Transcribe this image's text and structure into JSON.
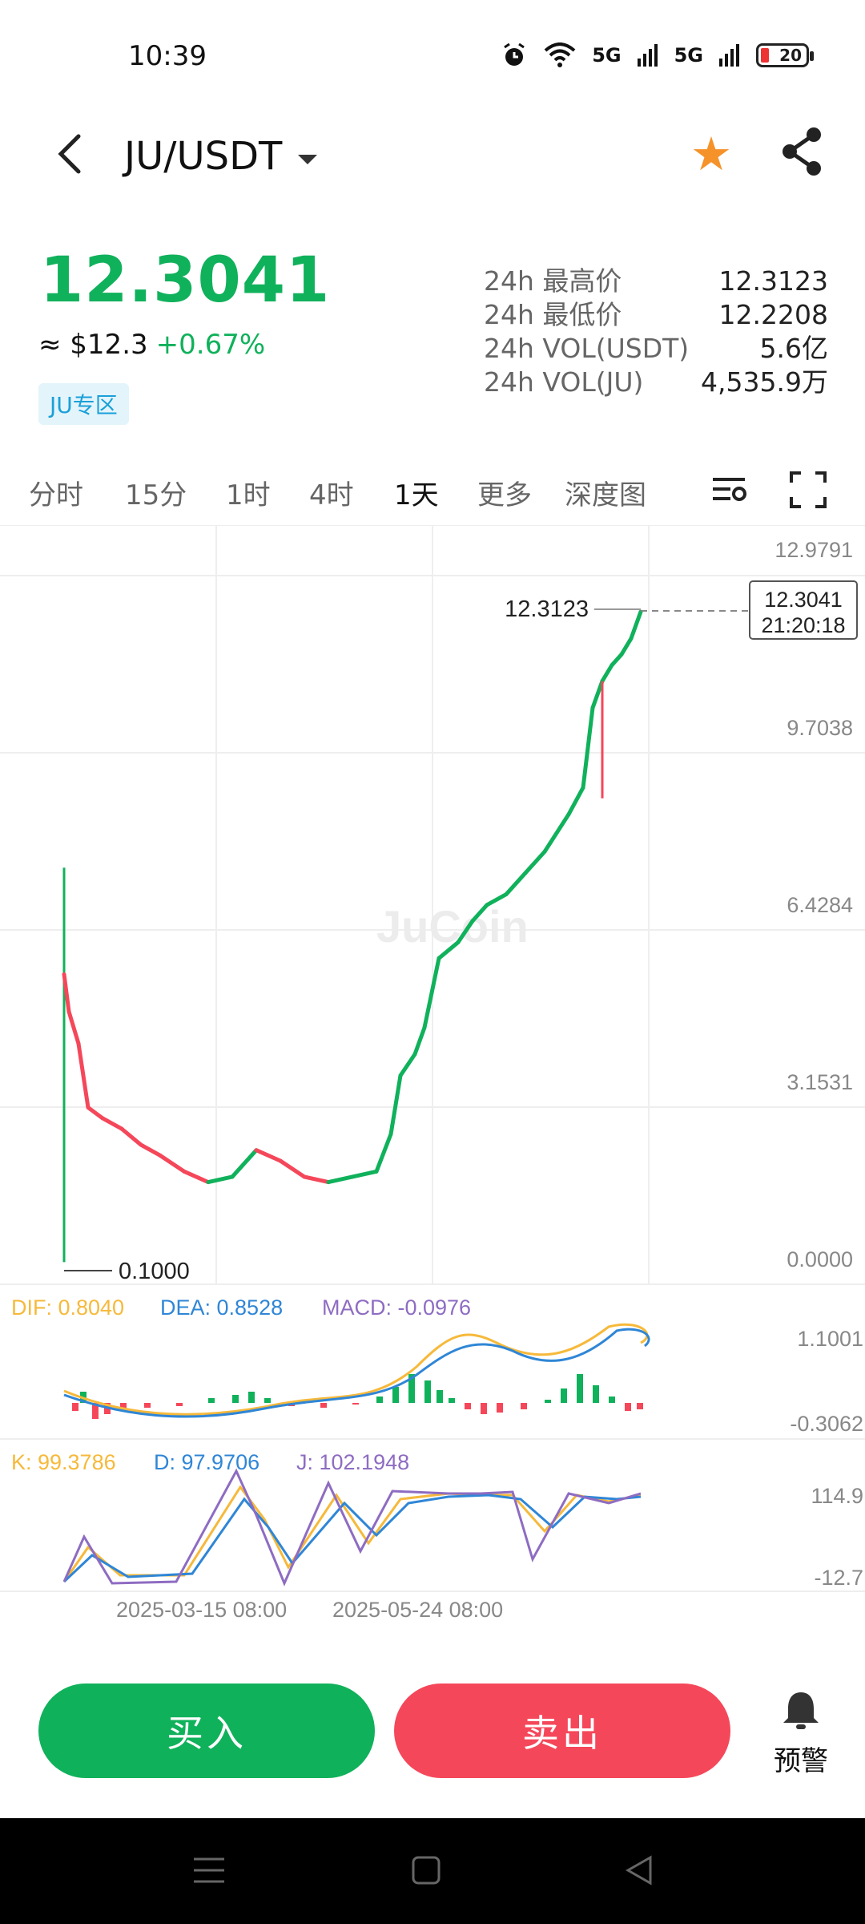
{
  "status_bar": {
    "time": "10:39",
    "battery": "20",
    "signal1": "5G",
    "signal2": "5G"
  },
  "header": {
    "pair": "JU/USDT"
  },
  "ticker": {
    "last_price": "12.3041",
    "approx_usd": "≈ $12.3",
    "change_pct": "+0.67%",
    "zone_tag": "JU专区",
    "stats": [
      {
        "label": "24h 最高价",
        "value": "12.3123"
      },
      {
        "label": "24h 最低价",
        "value": "12.2208"
      },
      {
        "label": "24h VOL(USDT)",
        "value": "5.6亿"
      },
      {
        "label": "24h VOL(JU)",
        "value": "4,535.9万"
      }
    ]
  },
  "tabs": [
    {
      "label": "分时",
      "active": false
    },
    {
      "label": "15分",
      "active": false
    },
    {
      "label": "1时",
      "active": false
    },
    {
      "label": "4时",
      "active": false
    },
    {
      "label": "1天",
      "active": true
    },
    {
      "label": "更多",
      "active": false
    },
    {
      "label": "深度图",
      "active": false
    }
  ],
  "chart_data": {
    "type": "line",
    "price_axis": [
      "12.9791",
      "9.7038",
      "6.4284",
      "3.1531",
      "0.0000"
    ],
    "ylim": [
      0,
      12.9791
    ],
    "high_label": "12.3123",
    "low_label": "0.1000",
    "current_price_box": {
      "price": "12.3041",
      "countdown": "21:20:18"
    },
    "watermark": "JuCoin",
    "x_labels": [
      "2025-03-15 08:00",
      "2025-05-24 08:00"
    ],
    "price_path": [
      [
        0,
        5.5
      ],
      [
        1,
        4.8
      ],
      [
        3,
        4.2
      ],
      [
        5,
        3.0
      ],
      [
        8,
        2.8
      ],
      [
        12,
        2.6
      ],
      [
        16,
        2.3
      ],
      [
        20,
        2.1
      ],
      [
        25,
        1.8
      ],
      [
        30,
        1.6
      ],
      [
        35,
        1.7
      ],
      [
        40,
        2.2
      ],
      [
        45,
        2.0
      ],
      [
        50,
        1.7
      ],
      [
        55,
        1.6
      ],
      [
        60,
        1.7
      ],
      [
        65,
        1.8
      ],
      [
        68,
        2.5
      ],
      [
        70,
        3.6
      ],
      [
        73,
        4.0
      ],
      [
        75,
        4.5
      ],
      [
        78,
        5.8
      ],
      [
        82,
        6.1
      ],
      [
        85,
        6.5
      ],
      [
        88,
        6.8
      ],
      [
        92,
        7.0
      ],
      [
        96,
        7.4
      ],
      [
        100,
        7.8
      ],
      [
        105,
        8.5
      ],
      [
        108,
        9.0
      ],
      [
        110,
        10.5
      ],
      [
        112,
        11.0
      ],
      [
        114,
        11.3
      ],
      [
        116,
        11.5
      ],
      [
        118,
        11.8
      ],
      [
        120,
        12.3
      ]
    ],
    "macd": {
      "dif": "DIF: 0.8040",
      "dea": "DEA: 0.8528",
      "macd": "MACD: -0.0976",
      "axis_top": "1.1001",
      "axis_bottom": "-0.3062"
    },
    "kdj": {
      "k": "K: 99.3786",
      "d": "D: 97.9706",
      "j": "J: 102.1948",
      "axis_top": "114.9",
      "axis_bottom": "-12.7"
    }
  },
  "colors": {
    "up": "#10b15b",
    "down": "#f5475a",
    "dif": "#f6b93b",
    "dea": "#2f86d6",
    "macd": "#8e6cc2"
  },
  "actions": {
    "buy": "买入",
    "sell": "卖出",
    "alert": "预警"
  }
}
